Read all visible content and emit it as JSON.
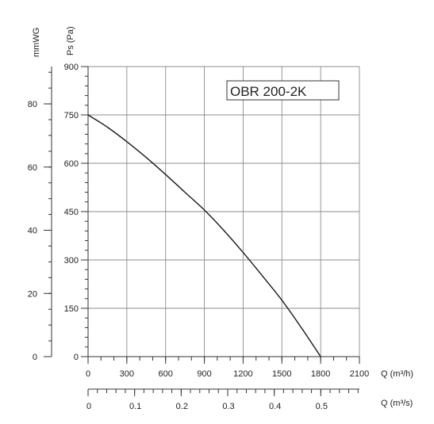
{
  "chart_data": {
    "type": "line",
    "legend_label": "OBR 200-2K",
    "legend_position": "top-right",
    "grid": true,
    "y_axis_left_title": "mmWG",
    "y_axis_right_title": "Ps (Pa)",
    "x_axis_title": "Q (m³/h)",
    "x2_axis_title": "Q (m³/s)",
    "xlim": [
      0,
      2100
    ],
    "ylim": [
      0,
      900
    ],
    "x2lim": [
      0,
      0.583
    ],
    "mmwg_lim": [
      0,
      91.8
    ],
    "x_ticks": [
      "0",
      "300",
      "600",
      "900",
      "1200",
      "1500",
      "1800",
      "2100"
    ],
    "x_tick_values": [
      0,
      300,
      600,
      900,
      1200,
      1500,
      1800,
      2100
    ],
    "y_ticks": [
      "0",
      "150",
      "300",
      "450",
      "600",
      "750",
      "900"
    ],
    "y_tick_values": [
      0,
      150,
      300,
      450,
      600,
      750,
      900
    ],
    "mmwg_ticks": [
      "0",
      "20",
      "40",
      "60",
      "80"
    ],
    "mmwg_tick_values": [
      0,
      20,
      40,
      60,
      80
    ],
    "x2_ticks": [
      "0",
      "0.1",
      "0.2",
      "0.3",
      "0.4",
      "0.5"
    ],
    "x2_tick_values": [
      0,
      0.1,
      0.2,
      0.3,
      0.4,
      0.5
    ],
    "series": [
      {
        "x": [
          0,
          150,
          300,
          450,
          600,
          750,
          900,
          1050,
          1200,
          1350,
          1500,
          1650,
          1800
        ],
        "y": [
          750,
          712,
          667,
          618,
          565,
          510,
          455,
          392,
          323,
          250,
          175,
          90,
          0
        ]
      }
    ]
  }
}
